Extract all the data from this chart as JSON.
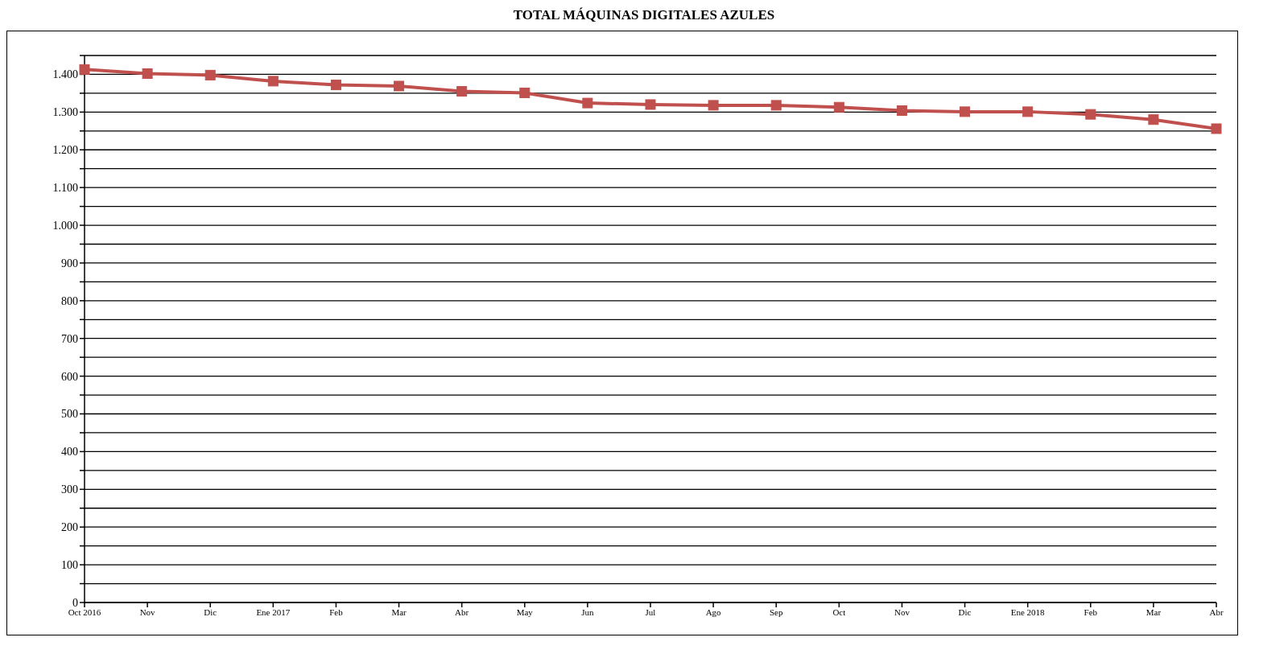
{
  "chart_data": {
    "type": "line",
    "title": "TOTAL MÁQUINAS DIGITALES AZULES",
    "categories": [
      "Oct 2016",
      "Nov",
      "Dic",
      "Ene 2017",
      "Feb",
      "Mar",
      "Abr",
      "May",
      "Jun",
      "Jul",
      "Ago",
      "Sep",
      "Oct",
      "Nov",
      "Dic",
      "Ene 2018",
      "Feb",
      "Mar",
      "Abr"
    ],
    "series": [
      {
        "color": "#c0504d",
        "values": [
          1413,
          1402,
          1398,
          1382,
          1372,
          1369,
          1355,
          1351,
          1324,
          1320,
          1318,
          1318,
          1313,
          1304,
          1301,
          1301,
          1294,
          1280,
          1256
        ]
      }
    ],
    "ylim": [
      0,
      1450
    ],
    "yticks": [
      0,
      {
        "value": 50,
        "label": null
      },
      {
        "value": 100,
        "label": "100"
      },
      {
        "value": 150,
        "label": null
      },
      {
        "value": 200,
        "label": "200"
      },
      {
        "value": 250,
        "label": null
      },
      {
        "value": 300,
        "label": "300"
      },
      {
        "value": 350,
        "label": null
      },
      {
        "value": 400,
        "label": "400"
      },
      {
        "value": 450,
        "label": null
      },
      {
        "value": 500,
        "label": "500"
      },
      {
        "value": 550,
        "label": null
      },
      {
        "value": 600,
        "label": "600"
      },
      {
        "value": 650,
        "label": null
      },
      {
        "value": 700,
        "label": "700"
      },
      {
        "value": 750,
        "label": null
      },
      {
        "value": 800,
        "label": "800"
      },
      {
        "value": 850,
        "label": null
      },
      {
        "value": 900,
        "label": "900"
      },
      {
        "value": 950,
        "label": null
      },
      {
        "value": 1000,
        "label": "1.000"
      },
      {
        "value": 1050,
        "label": null
      },
      {
        "value": 1100,
        "label": "1.100"
      },
      {
        "value": 1150,
        "label": null
      },
      {
        "value": 1200,
        "label": "1.200"
      },
      {
        "value": 1250,
        "label": null
      },
      {
        "value": 1300,
        "label": "1.300"
      },
      {
        "value": 1350,
        "label": null
      },
      {
        "value": 1400,
        "label": "1.400"
      },
      {
        "value": 1450,
        "label": null
      }
    ],
    "grid": "y",
    "legend": false,
    "marker": "square",
    "line_style": "solid"
  }
}
